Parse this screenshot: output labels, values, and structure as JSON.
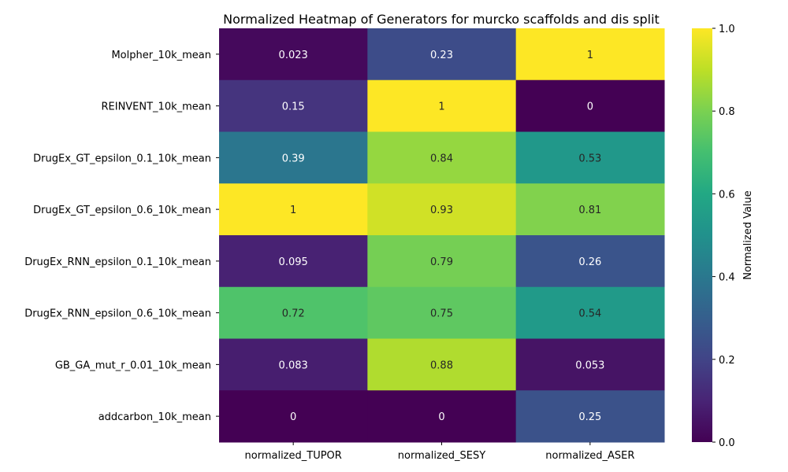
{
  "chart_data": {
    "type": "heatmap",
    "title": "Normalized Heatmap of Generators for murcko scaffolds and dis split",
    "columns": [
      "normalized_TUPOR",
      "normalized_SESY",
      "normalized_ASER"
    ],
    "rows": [
      "Molpher_10k_mean",
      "REINVENT_10k_mean",
      "DrugEx_GT_epsilon_0.1_10k_mean",
      "DrugEx_GT_epsilon_0.6_10k_mean",
      "DrugEx_RNN_epsilon_0.1_10k_mean",
      "DrugEx_RNN_epsilon_0.6_10k_mean",
      "GB_GA_mut_r_0.01_10k_mean",
      "addcarbon_10k_mean"
    ],
    "values": [
      [
        0.023,
        0.23,
        1
      ],
      [
        0.15,
        1,
        0
      ],
      [
        0.39,
        0.84,
        0.53
      ],
      [
        1,
        0.93,
        0.81
      ],
      [
        0.095,
        0.79,
        0.26
      ],
      [
        0.72,
        0.75,
        0.54
      ],
      [
        0.083,
        0.88,
        0.053
      ],
      [
        0,
        0,
        0.25
      ]
    ],
    "value_labels": [
      [
        "0.023",
        "0.23",
        "1"
      ],
      [
        "0.15",
        "1",
        "0"
      ],
      [
        "0.39",
        "0.84",
        "0.53"
      ],
      [
        "1",
        "0.93",
        "0.81"
      ],
      [
        "0.095",
        "0.79",
        "0.26"
      ],
      [
        "0.72",
        "0.75",
        "0.54"
      ],
      [
        "0.083",
        "0.88",
        "0.053"
      ],
      [
        "0",
        "0",
        "0.25"
      ]
    ],
    "colormap": "viridis",
    "vmin": 0,
    "vmax": 1,
    "colorbar": {
      "label": "Normalized Value",
      "ticks": [
        0.0,
        0.2,
        0.4,
        0.6,
        0.8,
        1.0
      ],
      "tick_labels": [
        "0.0",
        "0.2",
        "0.4",
        "0.6",
        "0.8",
        "1.0"
      ]
    }
  }
}
